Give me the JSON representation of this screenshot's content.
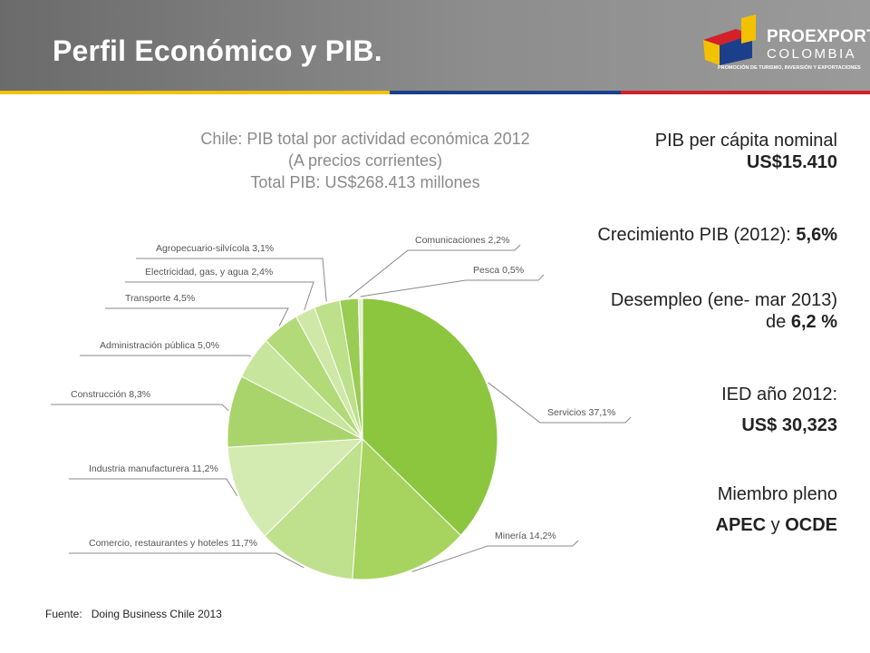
{
  "slide": {
    "title": "Perfil Económico y PIB.",
    "stripe_colors": [
      "#f2c200",
      "#1b3f8b",
      "#d3202a"
    ]
  },
  "logo": {
    "name": "PROEXPORT",
    "country": "COLOMBIA",
    "tagline": "PROMOCIÓN DE TURISMO, INVERSIÓN Y EXPORTACIONES"
  },
  "stats": {
    "pib_label": "PIB per cápita  nominal",
    "pib_value": "US$15.410",
    "growth_label": "Crecimiento PIB (2012): ",
    "growth_value": "5,6%",
    "unemployment_label": "Desempleo (ene- mar 2013)",
    "unemployment_prefix": "de ",
    "unemployment_value": "6,2 %",
    "fdi_label": "IED año 2012:",
    "fdi_value": "US$ 30,323",
    "member_label": "Miembro pleno",
    "member_org1": "APEC",
    "member_and": " y ",
    "member_org2": "OCDE"
  },
  "source": {
    "label": "Fuente:",
    "text": "Doing Business Chile 2013"
  },
  "chart_data": {
    "type": "pie",
    "title": [
      "Chile: PIB total por actividad económica 2012",
      "(A precios corrientes)",
      "Total PIB: US$268.413 millones"
    ],
    "title_color": "#8a8a8a",
    "label_color": "#555555",
    "leader_color": "#8a8a8a",
    "slices": [
      {
        "label": "Servicios 37,1%",
        "value": 37.1,
        "color": "#8cc63f"
      },
      {
        "label": "Minería 14,2%",
        "value": 14.2,
        "color": "#a6d45f"
      },
      {
        "label": "Comercio, restaurantes y hoteles 11,7%",
        "value": 11.7,
        "color": "#bfe08c"
      },
      {
        "label": "Industria manufacturera 11,2%",
        "value": 11.2,
        "color": "#d3eab0"
      },
      {
        "label": "Construcción 8,3%",
        "value": 8.3,
        "color": "#a9d46c"
      },
      {
        "label": "Administración pública 5,0%",
        "value": 5.0,
        "color": "#c8e59e"
      },
      {
        "label": "Transporte 4,5%",
        "value": 4.5,
        "color": "#b2da78"
      },
      {
        "label": "Electricidad, gas, y agua 2,4%",
        "value": 2.4,
        "color": "#cfe8a8"
      },
      {
        "label": "Agropecuario-silvícola 3,1%",
        "value": 3.1,
        "color": "#bde08a"
      },
      {
        "label": "Comunicaciones  2,2%",
        "value": 2.2,
        "color": "#99cc52"
      },
      {
        "label": "Pesca  0,5%",
        "value": 0.5,
        "color": "#e3f1cc"
      }
    ]
  }
}
